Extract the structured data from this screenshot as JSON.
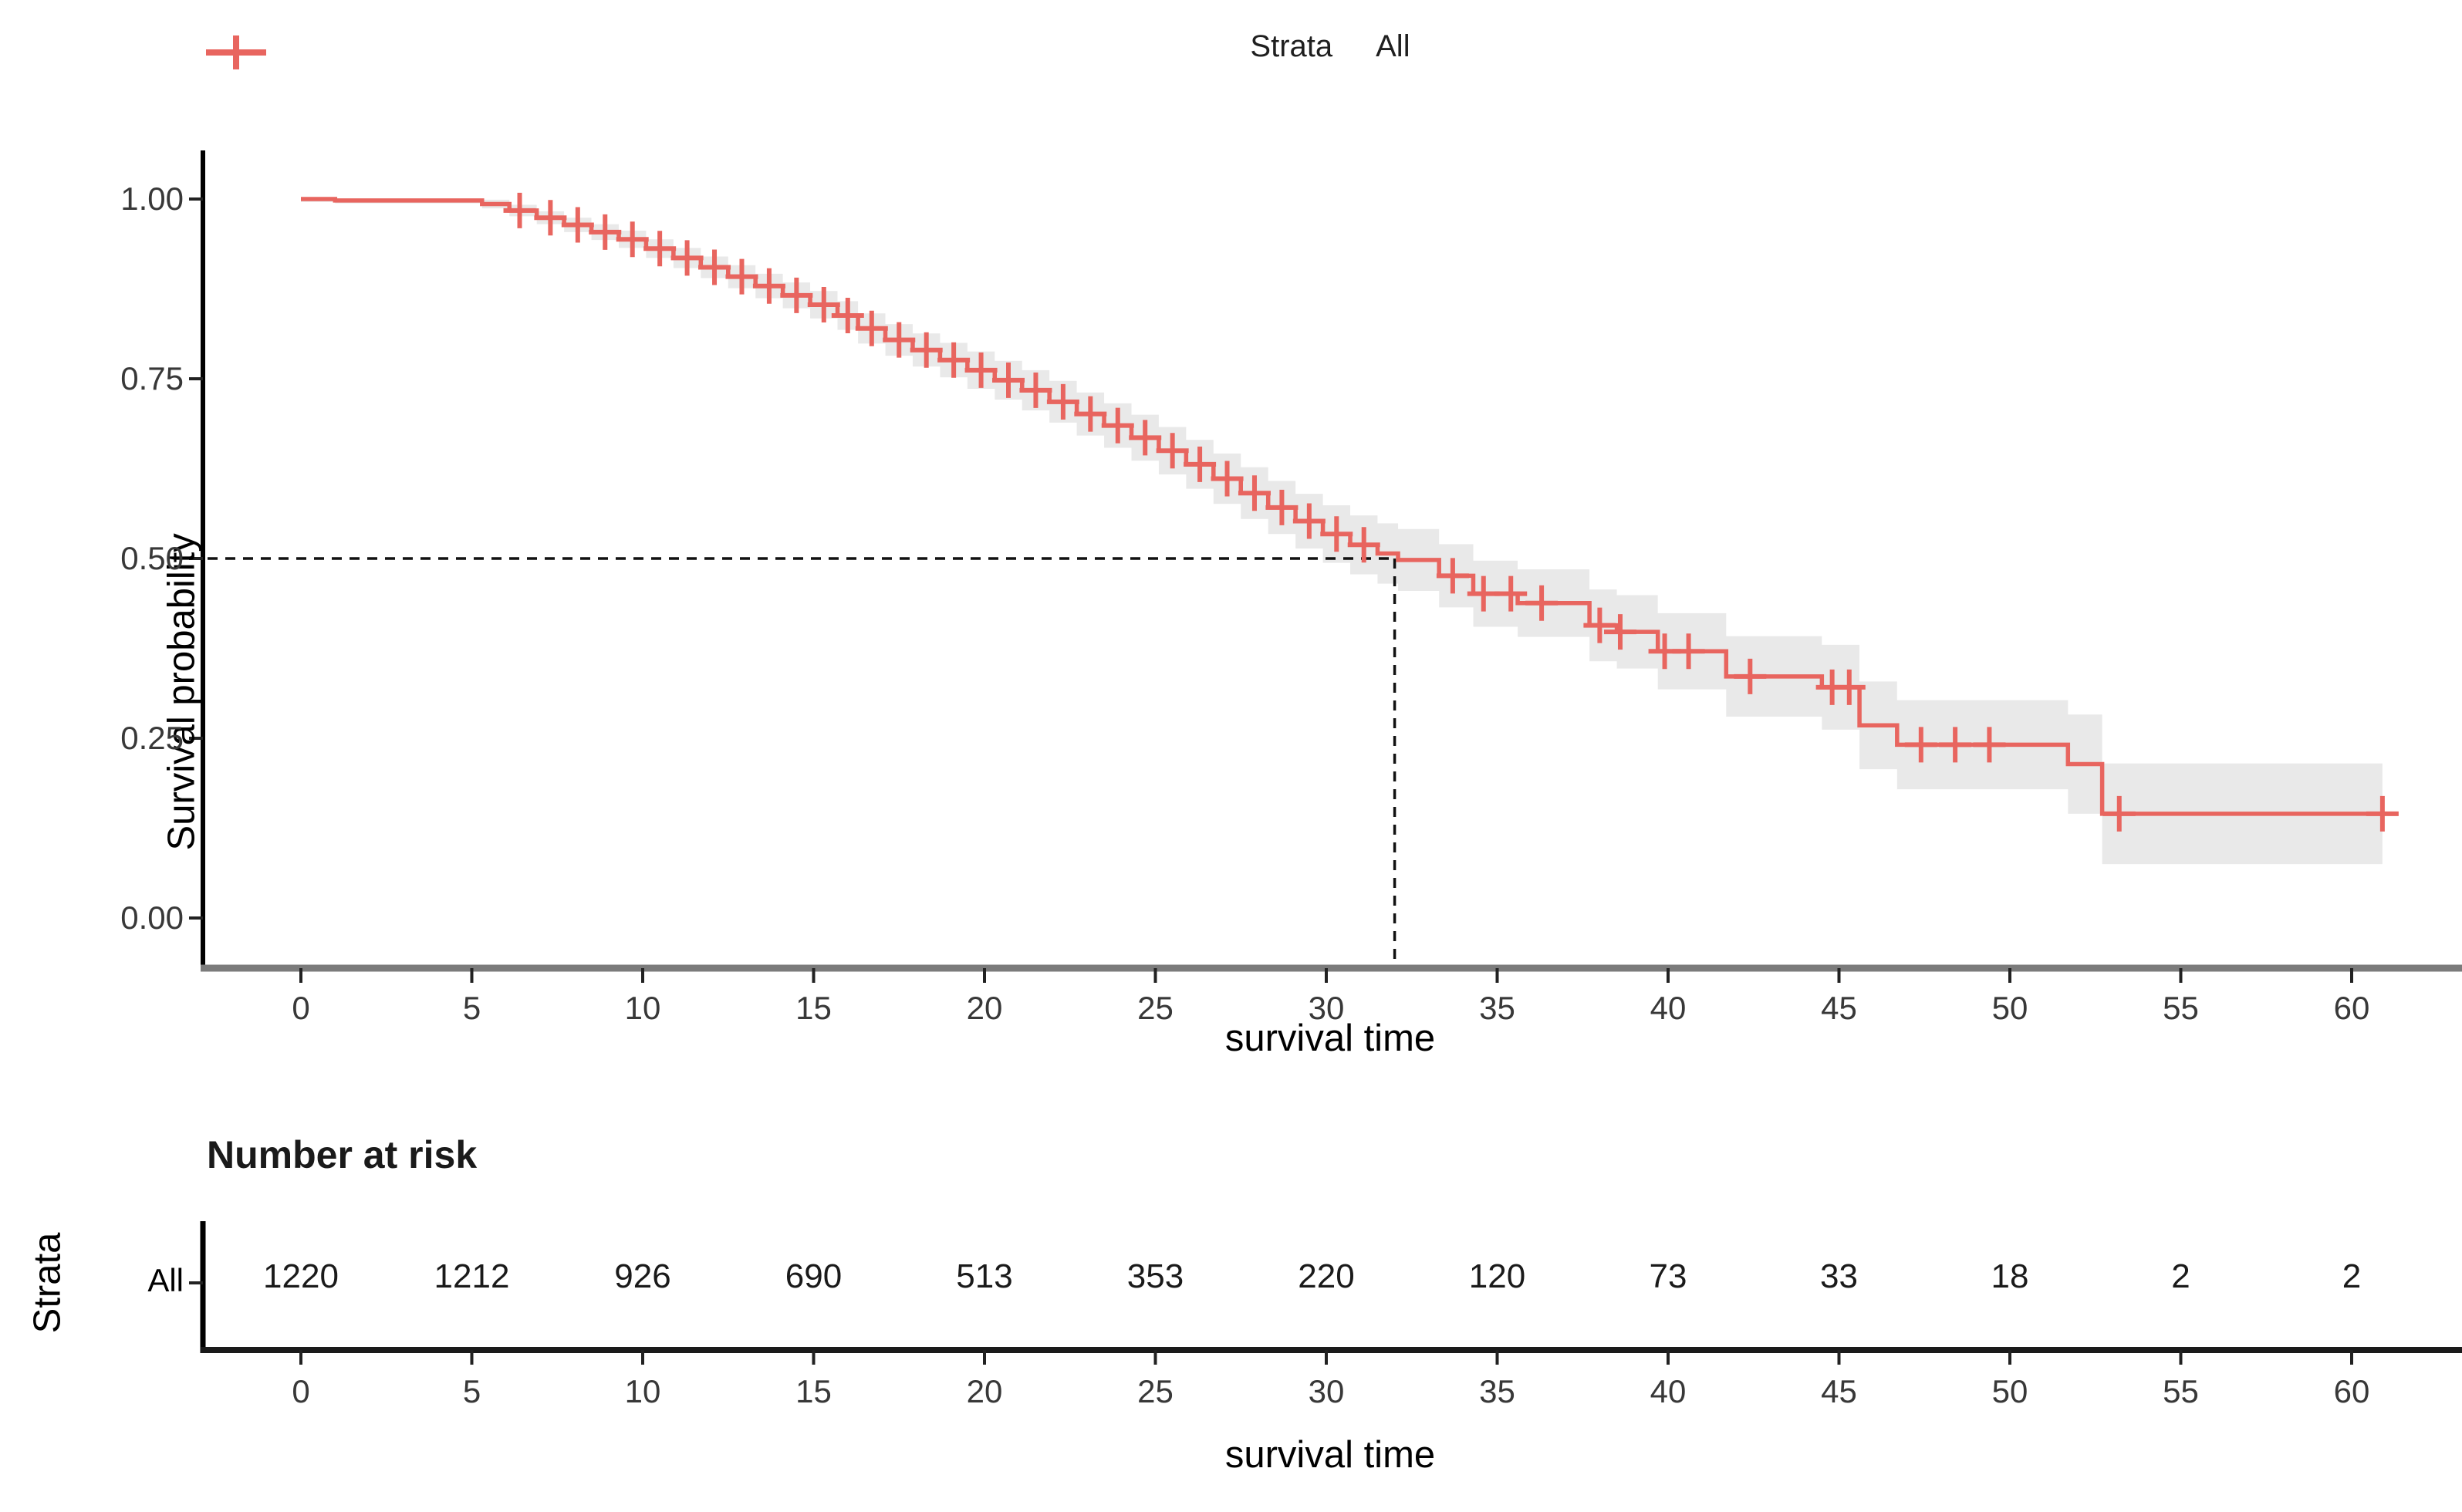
{
  "legend": {
    "title": "Strata",
    "series_label": "All"
  },
  "main_plot": {
    "y_axis": {
      "label": "Survival probability",
      "tick_labels": [
        "1.00",
        "0.75",
        "0.50",
        "0.25",
        "0.00"
      ],
      "tick_values": [
        1.0,
        0.75,
        0.5,
        0.25,
        0.0
      ]
    },
    "x_axis": {
      "label": "survival time",
      "tick_labels": [
        "0",
        "5",
        "10",
        "15",
        "20",
        "25",
        "30",
        "35",
        "40",
        "45",
        "50",
        "55",
        "60"
      ],
      "tick_values": [
        0,
        5,
        10,
        15,
        20,
        25,
        30,
        35,
        40,
        45,
        50,
        55,
        60
      ]
    }
  },
  "risk_table": {
    "title": "Number at risk",
    "left_axis_label": "Strata",
    "row_label": "All",
    "times": [
      0,
      5,
      10,
      15,
      20,
      25,
      30,
      35,
      40,
      45,
      50,
      55,
      60
    ],
    "values": [
      "1220",
      "1212",
      "926",
      "690",
      "513",
      "353",
      "220",
      "120",
      "73",
      "33",
      "18",
      "2",
      "2"
    ],
    "x_axis_label": "survival time"
  },
  "colors": {
    "stratum_all": "#e8655f",
    "confidence_band": "rgba(0,0,0,0.085)",
    "dashed_reference": "#111111",
    "x_axis_line": "#7b7b7b",
    "y_axis_line": "#000000",
    "tick_text": "#383838"
  },
  "chart_data": {
    "type": "line",
    "subtype": "kaplan-meier-step",
    "title": "",
    "xlabel": "survival time",
    "ylabel": "Survival probability",
    "xlim": [
      -3,
      63
    ],
    "ylim": [
      0,
      1
    ],
    "grid": false,
    "legend_position": "top",
    "series_name": "All",
    "median": {
      "time": 32,
      "survival": 0.5
    },
    "end_time": 60.9,
    "steps": [
      {
        "t": 0.0,
        "s": 1.0,
        "lo": 0.996,
        "hi": 1.0
      },
      {
        "t": 1.0,
        "s": 0.998,
        "lo": 0.994,
        "hi": 1.0
      },
      {
        "t": 5.3,
        "s": 0.993,
        "lo": 0.987,
        "hi": 0.999
      },
      {
        "t": 6.1,
        "s": 0.984,
        "lo": 0.976,
        "hi": 0.992
      },
      {
        "t": 6.9,
        "s": 0.974,
        "lo": 0.965,
        "hi": 0.983
      },
      {
        "t": 7.7,
        "s": 0.964,
        "lo": 0.954,
        "hi": 0.974
      },
      {
        "t": 8.5,
        "s": 0.954,
        "lo": 0.943,
        "hi": 0.965
      },
      {
        "t": 9.3,
        "s": 0.944,
        "lo": 0.932,
        "hi": 0.956
      },
      {
        "t": 10.1,
        "s": 0.931,
        "lo": 0.918,
        "hi": 0.944
      },
      {
        "t": 10.9,
        "s": 0.918,
        "lo": 0.904,
        "hi": 0.932
      },
      {
        "t": 11.7,
        "s": 0.905,
        "lo": 0.89,
        "hi": 0.92
      },
      {
        "t": 12.5,
        "s": 0.892,
        "lo": 0.876,
        "hi": 0.908
      },
      {
        "t": 13.3,
        "s": 0.879,
        "lo": 0.862,
        "hi": 0.896
      },
      {
        "t": 14.1,
        "s": 0.866,
        "lo": 0.848,
        "hi": 0.884
      },
      {
        "t": 14.9,
        "s": 0.853,
        "lo": 0.834,
        "hi": 0.872
      },
      {
        "t": 15.7,
        "s": 0.838,
        "lo": 0.818,
        "hi": 0.858
      },
      {
        "t": 16.3,
        "s": 0.82,
        "lo": 0.799,
        "hi": 0.841
      },
      {
        "t": 17.1,
        "s": 0.804,
        "lo": 0.782,
        "hi": 0.826
      },
      {
        "t": 17.9,
        "s": 0.79,
        "lo": 0.767,
        "hi": 0.813
      },
      {
        "t": 18.7,
        "s": 0.776,
        "lo": 0.752,
        "hi": 0.8
      },
      {
        "t": 19.5,
        "s": 0.762,
        "lo": 0.736,
        "hi": 0.788
      },
      {
        "t": 20.3,
        "s": 0.748,
        "lo": 0.721,
        "hi": 0.775
      },
      {
        "t": 21.1,
        "s": 0.734,
        "lo": 0.706,
        "hi": 0.762
      },
      {
        "t": 21.9,
        "s": 0.718,
        "lo": 0.689,
        "hi": 0.747
      },
      {
        "t": 22.7,
        "s": 0.701,
        "lo": 0.671,
        "hi": 0.731
      },
      {
        "t": 23.5,
        "s": 0.685,
        "lo": 0.654,
        "hi": 0.716
      },
      {
        "t": 24.3,
        "s": 0.668,
        "lo": 0.636,
        "hi": 0.7
      },
      {
        "t": 25.1,
        "s": 0.65,
        "lo": 0.617,
        "hi": 0.683
      },
      {
        "t": 25.9,
        "s": 0.631,
        "lo": 0.597,
        "hi": 0.665
      },
      {
        "t": 26.7,
        "s": 0.611,
        "lo": 0.576,
        "hi": 0.646
      },
      {
        "t": 27.5,
        "s": 0.591,
        "lo": 0.555,
        "hi": 0.627
      },
      {
        "t": 28.3,
        "s": 0.571,
        "lo": 0.534,
        "hi": 0.608
      },
      {
        "t": 29.1,
        "s": 0.552,
        "lo": 0.514,
        "hi": 0.59
      },
      {
        "t": 29.9,
        "s": 0.534,
        "lo": 0.494,
        "hi": 0.574
      },
      {
        "t": 30.7,
        "s": 0.519,
        "lo": 0.478,
        "hi": 0.56
      },
      {
        "t": 31.5,
        "s": 0.507,
        "lo": 0.465,
        "hi": 0.549
      },
      {
        "t": 32.1,
        "s": 0.498,
        "lo": 0.455,
        "hi": 0.541
      },
      {
        "t": 33.3,
        "s": 0.476,
        "lo": 0.432,
        "hi": 0.52
      },
      {
        "t": 34.3,
        "s": 0.451,
        "lo": 0.405,
        "hi": 0.497
      },
      {
        "t": 35.6,
        "s": 0.438,
        "lo": 0.391,
        "hi": 0.485
      },
      {
        "t": 37.7,
        "s": 0.407,
        "lo": 0.357,
        "hi": 0.457
      },
      {
        "t": 38.5,
        "s": 0.398,
        "lo": 0.347,
        "hi": 0.449
      },
      {
        "t": 39.7,
        "s": 0.371,
        "lo": 0.318,
        "hi": 0.424
      },
      {
        "t": 41.7,
        "s": 0.336,
        "lo": 0.28,
        "hi": 0.392
      },
      {
        "t": 44.5,
        "s": 0.321,
        "lo": 0.262,
        "hi": 0.38
      },
      {
        "t": 45.6,
        "s": 0.268,
        "lo": 0.207,
        "hi": 0.329
      },
      {
        "t": 46.7,
        "s": 0.241,
        "lo": 0.179,
        "hi": 0.303
      },
      {
        "t": 51.7,
        "s": 0.214,
        "lo": 0.145,
        "hi": 0.283
      },
      {
        "t": 52.7,
        "s": 0.145,
        "lo": 0.075,
        "hi": 0.215
      }
    ],
    "censor_times": [
      6.4,
      7.3,
      8.1,
      8.9,
      9.7,
      10.5,
      11.3,
      12.1,
      12.9,
      13.7,
      14.5,
      15.3,
      16.0,
      16.7,
      17.5,
      18.3,
      19.1,
      19.9,
      20.7,
      21.5,
      22.3,
      23.1,
      23.9,
      24.7,
      25.5,
      26.3,
      27.1,
      27.9,
      28.7,
      29.5,
      30.3,
      31.1,
      33.7,
      34.6,
      35.4,
      36.3,
      38.0,
      38.6,
      39.9,
      40.6,
      42.4,
      44.8,
      45.3,
      47.4,
      48.4,
      49.4,
      53.2,
      60.9
    ]
  }
}
